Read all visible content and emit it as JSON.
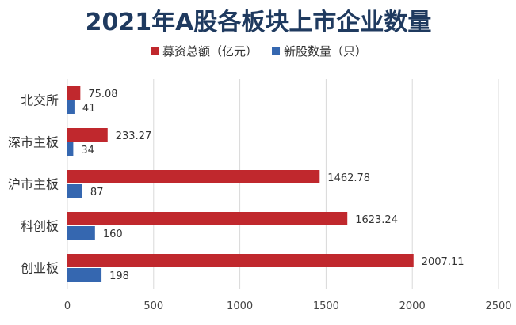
{
  "chart_data": {
    "type": "bar",
    "orientation": "horizontal",
    "title": "2021年A股各板块上市企业数量",
    "categories": [
      "北交所",
      "深市主板",
      "沪市主板",
      "科创板",
      "创业板"
    ],
    "series": [
      {
        "name": "募资总额（亿元）",
        "values": [
          75.08,
          233.27,
          1462.78,
          1623.24,
          2007.11
        ],
        "color": "#c0282d"
      },
      {
        "name": "新股数量（只）",
        "values": [
          41,
          34,
          87,
          160,
          198
        ],
        "color": "#3567b0"
      }
    ],
    "xlim": [
      0,
      2500
    ],
    "xticks": [
      0,
      500,
      1000,
      1500,
      2000,
      2500
    ],
    "grid": true,
    "legend_position": "top-center"
  }
}
